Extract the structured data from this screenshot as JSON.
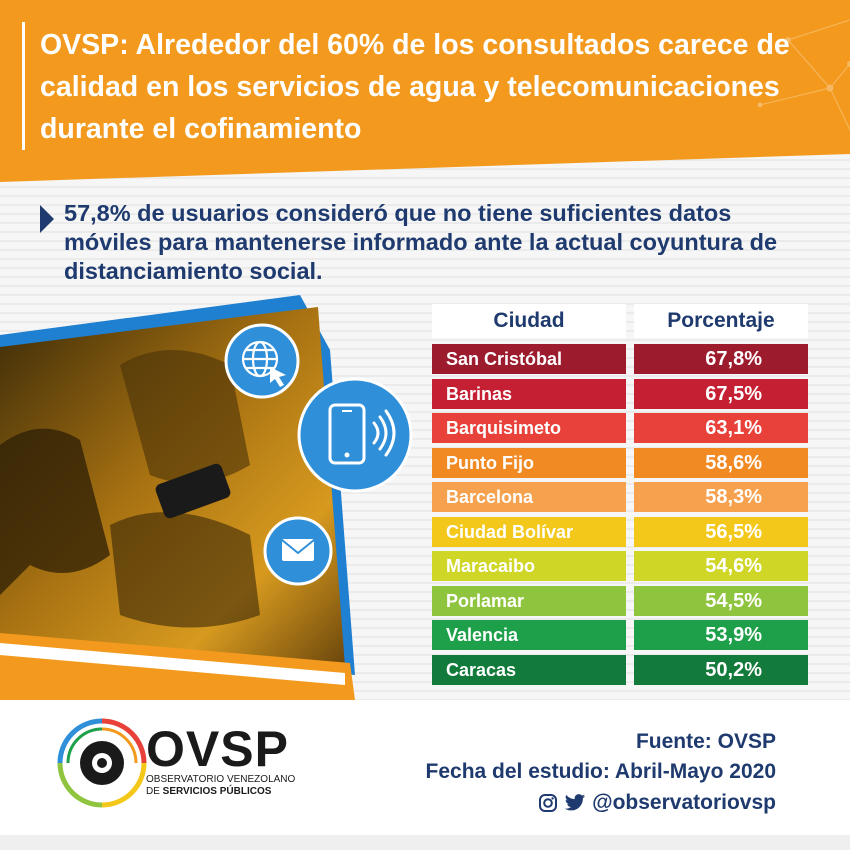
{
  "header": {
    "title": "OVSP: Alrededor del 60% de los consultados carece de calidad en los servicios de agua y telecomunicaciones durante el cofinamiento"
  },
  "subtitle": "57,8% de usuarios consideró que no tiene suficientes datos móviles para mantenerse  informado ante la actual coyuntura de distanciamiento social.",
  "table": {
    "headers": {
      "city": "Ciudad",
      "percentage": "Porcentaje"
    },
    "rows": [
      {
        "city": "San Cristóbal",
        "percentage": "67,8%",
        "city_color": "#9c1b2d",
        "pct_color": "#9c1b2d"
      },
      {
        "city": "Barinas",
        "percentage": "67,5%",
        "city_color": "#c41f32",
        "pct_color": "#c41f32"
      },
      {
        "city": "Barquisimeto",
        "percentage": "63,1%",
        "city_color": "#e8413a",
        "pct_color": "#e8413a"
      },
      {
        "city": "Punto Fijo",
        "percentage": "58,6%",
        "city_color": "#f28a24",
        "pct_color": "#f28a24"
      },
      {
        "city": "Barcelona",
        "percentage": "58,3%",
        "city_color": "#f5a14e",
        "pct_color": "#f5a14e"
      },
      {
        "city": "Ciudad Bolívar",
        "percentage": "56,5%",
        "city_color": "#f3c81b",
        "pct_color": "#f3c81b"
      },
      {
        "city": "Maracaibo",
        "percentage": "54,6%",
        "city_color": "#cfd626",
        "pct_color": "#cfd626"
      },
      {
        "city": "Porlamar",
        "percentage": "54,5%",
        "city_color": "#8fc43f",
        "pct_color": "#8fc43f"
      },
      {
        "city": "Valencia",
        "percentage": "53,9%",
        "city_color": "#1ea04a",
        "pct_color": "#1ea04a"
      },
      {
        "city": "Caracas",
        "percentage": "50,2%",
        "city_color": "#127a3a",
        "pct_color": "#127a3a"
      }
    ]
  },
  "icons": [
    "globe-cursor-icon",
    "smartphone-wifi-icon",
    "envelope-icon",
    "instagram-icon",
    "twitter-icon"
  ],
  "footer": {
    "logo_text": "OVSP",
    "logo_line1": "OBSERVATORIO VENEZOLANO",
    "logo_line2_prefix": "DE ",
    "logo_line2_bold": "SERVICIOS PÚBLICOS",
    "source": "Fuente: OVSP",
    "study_date": "Fecha del estudio: Abril-Mayo 2020",
    "social_handle": "@observatoriovsp"
  },
  "colors": {
    "orange": "#f39a1e",
    "navy": "#1e3a6e",
    "icon_blue": "#2f8fd8"
  }
}
